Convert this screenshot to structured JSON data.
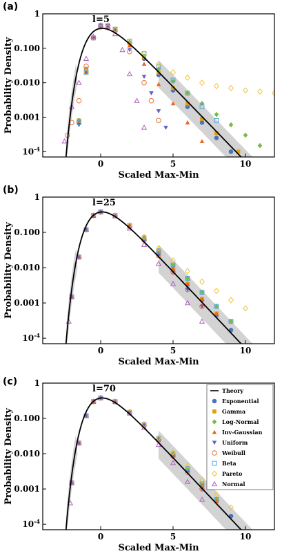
{
  "colors": {
    "Theory": "#000000",
    "Exponential": "#4a73bd",
    "Gamma": "#e0a10a",
    "Log-Normal": "#7ab84a",
    "Inv-Gaussian": "#ef6421",
    "Uniform": "#6262c4",
    "Weibull": "#e8703a",
    "Beta": "#4aa3d8",
    "Pareto": "#f2c23a",
    "Normal": "#b05fc0",
    "Band": "#c8c8c8"
  },
  "chart_data": [
    {
      "type": "scatter",
      "panel_label": "(a)",
      "annotation": "l=5",
      "xlabel": "Scaled Max-Min",
      "ylabel": "Probability Density",
      "xlim": [
        -4,
        12
      ],
      "ylim": [
        7e-05,
        1
      ],
      "yscale": "log",
      "x_ticks": [
        0,
        5,
        10
      ],
      "y_ticks": [
        {
          "v": 1,
          "t": "1"
        },
        {
          "v": 0.1,
          "t": "0.100"
        },
        {
          "v": 0.01,
          "t": "0.010"
        },
        {
          "v": 0.001,
          "t": "0.001"
        },
        {
          "v": 0.0001,
          "t": "10-4"
        }
      ],
      "legend": false,
      "series": [
        {
          "name": "Exponential",
          "x": [
            -1.5,
            -1,
            -0.5,
            0,
            0.5,
            1,
            2,
            3,
            4,
            5,
            6,
            7,
            8,
            9
          ],
          "y": [
            0.0008,
            0.025,
            0.2,
            0.45,
            0.45,
            0.35,
            0.14,
            0.05,
            0.017,
            0.006,
            0.002,
            0.0007,
            0.00025,
            0.0001
          ]
        },
        {
          "name": "Gamma",
          "x": [
            -1.5,
            -1,
            -0.5,
            0,
            0.5,
            1,
            2,
            3,
            4,
            5,
            6,
            7,
            8,
            9.5
          ],
          "y": [
            0.0008,
            0.025,
            0.2,
            0.45,
            0.45,
            0.35,
            0.14,
            0.055,
            0.02,
            0.007,
            0.0025,
            0.0009,
            0.00035,
            0.0001
          ]
        },
        {
          "name": "Log-Normal",
          "x": [
            -1.5,
            -1,
            -0.5,
            0,
            0.5,
            1,
            2,
            3,
            4,
            5,
            6,
            7,
            8,
            9,
            10,
            11
          ],
          "y": [
            0.0008,
            0.02,
            0.2,
            0.44,
            0.45,
            0.36,
            0.15,
            0.06,
            0.025,
            0.011,
            0.005,
            0.0025,
            0.0012,
            0.0006,
            0.0003,
            0.00015
          ]
        },
        {
          "name": "Inv-Gaussian",
          "x": [
            -1.5,
            -1,
            -0.5,
            0,
            0.5,
            1,
            2,
            3,
            4,
            5,
            6,
            7
          ],
          "y": [
            0.0007,
            0.02,
            0.2,
            0.46,
            0.45,
            0.34,
            0.12,
            0.035,
            0.009,
            0.0025,
            0.0007,
            0.0002
          ]
        },
        {
          "name": "Uniform",
          "x": [
            -1.5,
            -1,
            -0.5,
            0,
            0.5,
            1,
            2,
            3,
            3.5,
            4,
            4.5
          ],
          "y": [
            0.0006,
            0.02,
            0.2,
            0.47,
            0.45,
            0.32,
            0.09,
            0.015,
            0.005,
            0.0015,
            0.0005
          ]
        },
        {
          "name": "Weibull",
          "x": [
            -2.3,
            -2,
            -1.5,
            -1,
            -0.5,
            0,
            0.5,
            1,
            2,
            3,
            3.5,
            4
          ],
          "y": [
            0.0003,
            0.0007,
            0.003,
            0.03,
            0.2,
            0.45,
            0.45,
            0.32,
            0.08,
            0.01,
            0.003,
            0.0008
          ]
        },
        {
          "name": "Beta",
          "x": [
            -1.5,
            -1,
            -0.5,
            0,
            0.5,
            1,
            2,
            3,
            4,
            5,
            6,
            7,
            8
          ],
          "y": [
            0.0007,
            0.02,
            0.2,
            0.45,
            0.45,
            0.36,
            0.16,
            0.07,
            0.03,
            0.012,
            0.005,
            0.002,
            0.0008
          ]
        },
        {
          "name": "Pareto",
          "x": [
            -1,
            -0.5,
            0,
            0.5,
            1,
            2,
            3,
            4,
            5,
            6,
            7,
            8,
            9,
            10,
            11,
            12
          ],
          "y": [
            0.02,
            0.2,
            0.4,
            0.42,
            0.35,
            0.16,
            0.07,
            0.035,
            0.02,
            0.014,
            0.01,
            0.008,
            0.007,
            0.006,
            0.0055,
            0.005
          ]
        },
        {
          "name": "Normal",
          "x": [
            -2.5,
            -2,
            -1.5,
            -1,
            -0.5,
            0,
            0.5,
            1,
            1.5,
            2,
            2.5,
            3
          ],
          "y": [
            0.0002,
            0.002,
            0.01,
            0.05,
            0.22,
            0.47,
            0.42,
            0.26,
            0.09,
            0.018,
            0.003,
            0.0005
          ]
        }
      ]
    },
    {
      "type": "scatter",
      "panel_label": "(b)",
      "annotation": "l=25",
      "xlabel": "Scaled Max-Min",
      "ylabel": "Probability Density",
      "xlim": [
        -4,
        12
      ],
      "ylim": [
        7e-05,
        1
      ],
      "yscale": "log",
      "x_ticks": [
        0,
        5,
        10
      ],
      "y_ticks": [
        {
          "v": 1,
          "t": "1"
        },
        {
          "v": 0.1,
          "t": "0.100"
        },
        {
          "v": 0.01,
          "t": "0.010"
        },
        {
          "v": 0.001,
          "t": "0.001"
        },
        {
          "v": 0.0001,
          "t": "10-4"
        }
      ],
      "legend": false,
      "series": [
        {
          "name": "Exponential",
          "x": [
            -2,
            -1.5,
            -1,
            -0.5,
            0,
            1,
            2,
            3,
            4,
            5,
            6,
            7,
            8,
            9
          ],
          "y": [
            0.0015,
            0.02,
            0.12,
            0.3,
            0.38,
            0.3,
            0.15,
            0.065,
            0.025,
            0.009,
            0.0033,
            0.0012,
            0.00045,
            0.00017
          ]
        },
        {
          "name": "Gamma",
          "x": [
            -2,
            -1.5,
            -1,
            -0.5,
            0,
            1,
            2,
            3,
            4,
            5,
            6,
            7,
            8
          ],
          "y": [
            0.0015,
            0.02,
            0.12,
            0.3,
            0.38,
            0.3,
            0.15,
            0.066,
            0.026,
            0.0095,
            0.0035,
            0.0013,
            0.0005
          ]
        },
        {
          "name": "Log-Normal",
          "x": [
            -2,
            -1.5,
            -1,
            -0.5,
            0,
            1,
            2,
            3,
            4,
            5,
            6,
            7,
            8,
            9
          ],
          "y": [
            0.0015,
            0.02,
            0.12,
            0.3,
            0.38,
            0.3,
            0.155,
            0.07,
            0.03,
            0.012,
            0.005,
            0.002,
            0.0008,
            0.0003
          ]
        },
        {
          "name": "Inv-Gaussian",
          "x": [
            -2,
            -1.5,
            -1,
            -0.5,
            0,
            1,
            2,
            3,
            4,
            5,
            6,
            7,
            8
          ],
          "y": [
            0.0015,
            0.02,
            0.12,
            0.3,
            0.38,
            0.3,
            0.15,
            0.066,
            0.026,
            0.0095,
            0.0035,
            0.0013,
            0.0005
          ]
        },
        {
          "name": "Uniform",
          "x": [
            -2,
            -1.5,
            -1,
            -0.5,
            0,
            1,
            2,
            3,
            4,
            5,
            6,
            7
          ],
          "y": [
            0.0015,
            0.02,
            0.12,
            0.3,
            0.38,
            0.3,
            0.145,
            0.06,
            0.022,
            0.0075,
            0.0024,
            0.0008
          ]
        },
        {
          "name": "Weibull",
          "x": [
            -2,
            -1.5,
            -1,
            -0.5,
            0,
            1,
            2,
            3,
            4,
            5,
            6,
            7
          ],
          "y": [
            0.0015,
            0.02,
            0.12,
            0.3,
            0.38,
            0.3,
            0.145,
            0.06,
            0.022,
            0.0075,
            0.0024,
            0.0008
          ]
        },
        {
          "name": "Beta",
          "x": [
            -2,
            -1.5,
            -1,
            -0.5,
            0,
            1,
            2,
            3,
            4,
            5,
            6,
            7,
            8,
            9
          ],
          "y": [
            0.0015,
            0.02,
            0.12,
            0.3,
            0.38,
            0.3,
            0.155,
            0.07,
            0.03,
            0.012,
            0.005,
            0.002,
            0.0008,
            0.0003
          ]
        },
        {
          "name": "Pareto",
          "x": [
            -2,
            -1.5,
            -1,
            -0.5,
            0,
            1,
            2,
            3,
            4,
            5,
            6,
            7,
            8,
            9,
            10
          ],
          "y": [
            0.0015,
            0.02,
            0.12,
            0.3,
            0.37,
            0.3,
            0.16,
            0.075,
            0.035,
            0.016,
            0.008,
            0.004,
            0.0022,
            0.0012,
            0.0007
          ]
        },
        {
          "name": "Normal",
          "x": [
            -2.2,
            -2,
            -1.5,
            -1,
            -0.5,
            0,
            1,
            2,
            3,
            4,
            5,
            6,
            7
          ],
          "y": [
            0.0003,
            0.0015,
            0.02,
            0.12,
            0.3,
            0.38,
            0.29,
            0.13,
            0.045,
            0.013,
            0.0035,
            0.001,
            0.0003
          ]
        }
      ]
    },
    {
      "type": "scatter",
      "panel_label": "(c)",
      "annotation": "l=70",
      "xlabel": "Scaled Max-Min",
      "ylabel": "Probability Density",
      "xlim": [
        -4,
        12
      ],
      "ylim": [
        7e-05,
        1
      ],
      "yscale": "log",
      "x_ticks": [
        0,
        5,
        10
      ],
      "y_ticks": [
        {
          "v": 1,
          "t": "1"
        },
        {
          "v": 0.1,
          "t": "0.100"
        },
        {
          "v": 0.01,
          "t": "0.010"
        },
        {
          "v": 0.001,
          "t": "0.001"
        },
        {
          "v": 0.0001,
          "t": "10-4"
        }
      ],
      "legend": true,
      "legend_entries": [
        "Theory",
        "Exponential",
        "Gamma",
        "Log-Normal",
        "Inv-Gaussian",
        "Uniform",
        "Weibull",
        "Beta",
        "Pareto",
        "Normal"
      ],
      "series": [
        {
          "name": "Exponential",
          "x": [
            -2,
            -1.5,
            -1,
            -0.5,
            0,
            1,
            2,
            3,
            4,
            5,
            6,
            7,
            8,
            9
          ],
          "y": [
            0.0015,
            0.02,
            0.12,
            0.3,
            0.38,
            0.3,
            0.15,
            0.065,
            0.025,
            0.009,
            0.0033,
            0.0012,
            0.00045,
            0.00017
          ]
        },
        {
          "name": "Gamma",
          "x": [
            -2,
            -1.5,
            -1,
            -0.5,
            0,
            1,
            2,
            3,
            4,
            5,
            6,
            7,
            8
          ],
          "y": [
            0.0015,
            0.02,
            0.12,
            0.3,
            0.38,
            0.3,
            0.15,
            0.065,
            0.025,
            0.009,
            0.0033,
            0.0012,
            0.00045
          ]
        },
        {
          "name": "Log-Normal",
          "x": [
            -2,
            -1.5,
            -1,
            -0.5,
            0,
            1,
            2,
            3,
            4,
            5,
            6,
            7,
            8
          ],
          "y": [
            0.0015,
            0.02,
            0.12,
            0.3,
            0.38,
            0.3,
            0.15,
            0.067,
            0.027,
            0.01,
            0.0038,
            0.0014,
            0.0005
          ]
        },
        {
          "name": "Inv-Gaussian",
          "x": [
            -2,
            -1.5,
            -1,
            -0.5,
            0,
            1,
            2,
            3,
            4,
            5,
            6,
            7,
            8
          ],
          "y": [
            0.0015,
            0.02,
            0.12,
            0.3,
            0.38,
            0.3,
            0.15,
            0.065,
            0.025,
            0.009,
            0.0033,
            0.0012,
            0.00045
          ]
        },
        {
          "name": "Uniform",
          "x": [
            -2,
            -1.5,
            -1,
            -0.5,
            0,
            1,
            2,
            3,
            4,
            5,
            6,
            7
          ],
          "y": [
            0.0015,
            0.02,
            0.12,
            0.3,
            0.38,
            0.3,
            0.148,
            0.063,
            0.024,
            0.0085,
            0.003,
            0.001
          ]
        },
        {
          "name": "Weibull",
          "x": [
            -2,
            -1.5,
            -1,
            -0.5,
            0,
            1,
            2,
            3,
            4,
            5,
            6,
            7
          ],
          "y": [
            0.0015,
            0.02,
            0.12,
            0.3,
            0.38,
            0.3,
            0.148,
            0.063,
            0.024,
            0.0085,
            0.003,
            0.001
          ]
        },
        {
          "name": "Beta",
          "x": [
            -2,
            -1.5,
            -1,
            -0.5,
            0,
            1,
            2,
            3,
            4,
            5,
            6,
            7,
            8
          ],
          "y": [
            0.0015,
            0.02,
            0.12,
            0.3,
            0.38,
            0.3,
            0.15,
            0.067,
            0.027,
            0.01,
            0.0038,
            0.0014,
            0.0005
          ]
        },
        {
          "name": "Pareto",
          "x": [
            -2,
            -1.5,
            -1,
            -0.5,
            0,
            1,
            2,
            3,
            4,
            5,
            6,
            7,
            8,
            9
          ],
          "y": [
            0.0015,
            0.02,
            0.12,
            0.3,
            0.38,
            0.3,
            0.152,
            0.068,
            0.028,
            0.011,
            0.0045,
            0.0018,
            0.0007,
            0.0003
          ]
        },
        {
          "name": "Normal",
          "x": [
            -2.1,
            -2,
            -1.5,
            -1,
            -0.5,
            0,
            1,
            2,
            3,
            4,
            5,
            6,
            7
          ],
          "y": [
            0.0004,
            0.0015,
            0.02,
            0.12,
            0.3,
            0.38,
            0.295,
            0.14,
            0.055,
            0.018,
            0.0055,
            0.0016,
            0.0005
          ]
        }
      ]
    }
  ]
}
